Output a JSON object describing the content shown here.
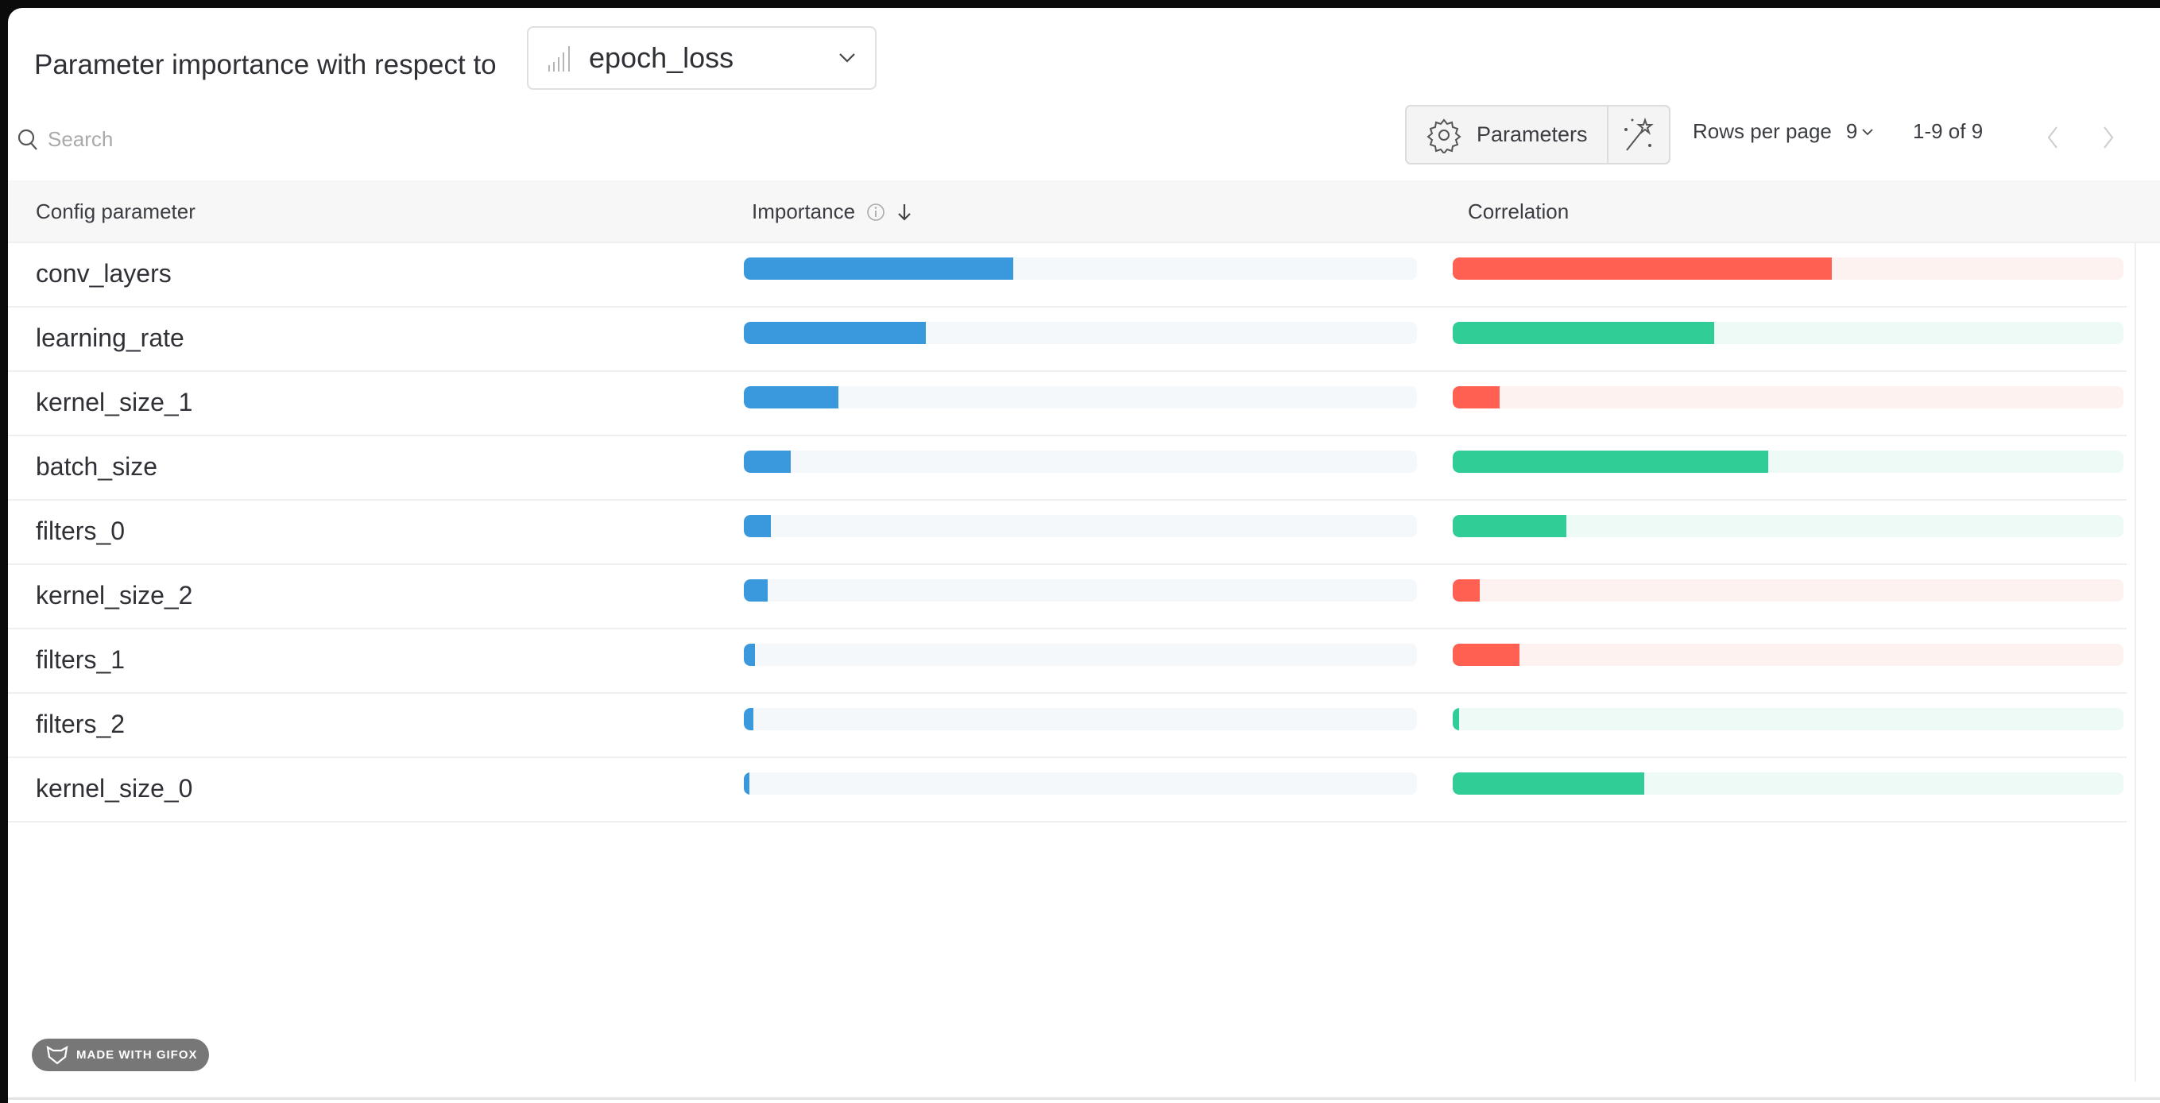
{
  "header": {
    "title": "Parameter importance with respect to",
    "metric": "epoch_loss",
    "metric_icon": "bar-chart-icon"
  },
  "search": {
    "placeholder": "Search"
  },
  "toolbar": {
    "parameters_label": "Parameters",
    "rows_per_page_label": "Rows per page",
    "rows_per_page_value": "9",
    "range": "1-9 of 9"
  },
  "table": {
    "columns": [
      "Config parameter",
      "Importance",
      "Correlation"
    ],
    "sort": "importance-descending",
    "rows": [
      {
        "name": "conv_layers",
        "importance": 0.4,
        "correlation": -0.565
      },
      {
        "name": "learning_rate",
        "importance": 0.27,
        "correlation": 0.39
      },
      {
        "name": "kernel_size_1",
        "importance": 0.14,
        "correlation": -0.07
      },
      {
        "name": "batch_size",
        "importance": 0.07,
        "correlation": 0.47
      },
      {
        "name": "filters_0",
        "importance": 0.04,
        "correlation": 0.17
      },
      {
        "name": "kernel_size_2",
        "importance": 0.035,
        "correlation": -0.04
      },
      {
        "name": "filters_1",
        "importance": 0.016,
        "correlation": -0.1
      },
      {
        "name": "filters_2",
        "importance": 0.014,
        "correlation": 0.01
      },
      {
        "name": "kernel_size_0",
        "importance": 0.008,
        "correlation": 0.285
      }
    ]
  },
  "colors": {
    "importance": "#3a98dc",
    "importance_track": "#f4f8fb",
    "negative": "#ff6052",
    "negative_track": "#fef2f1",
    "positive": "#30cd96",
    "positive_track": "#eefaf5"
  },
  "watermark": "MADE WITH GIFOX"
}
